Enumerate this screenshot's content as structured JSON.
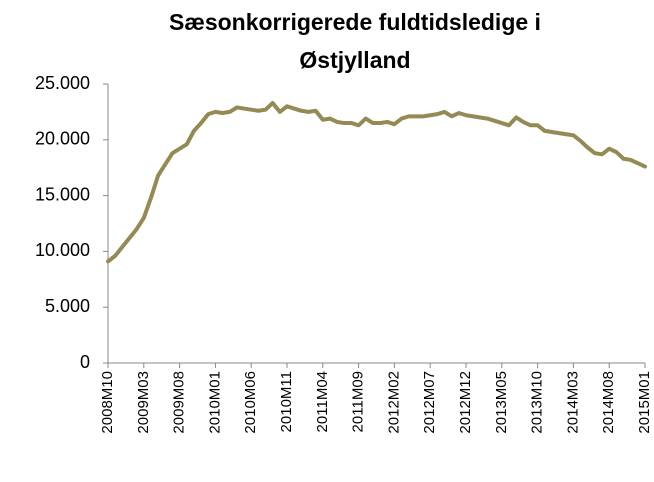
{
  "chart_data": {
    "type": "line",
    "title": [
      "Sæsonkorrigerede fuldtidsledige i",
      "Østjylland"
    ],
    "categories": [
      "2008M10",
      null,
      null,
      null,
      null,
      "2009M03",
      null,
      null,
      null,
      null,
      "2009M08",
      null,
      null,
      null,
      null,
      "2010M01",
      null,
      null,
      null,
      null,
      "2010M06",
      null,
      null,
      null,
      null,
      "2010M11",
      null,
      null,
      null,
      null,
      "2011M04",
      null,
      null,
      null,
      null,
      "2011M09",
      null,
      null,
      null,
      null,
      "2012M02",
      null,
      null,
      null,
      null,
      "2012M07",
      null,
      null,
      null,
      null,
      "2012M12",
      null,
      null,
      null,
      null,
      "2013M05",
      null,
      null,
      null,
      null,
      "2013M10",
      null,
      null,
      null,
      null,
      "2014M03",
      null,
      null,
      null,
      null,
      "2014M08",
      null,
      null,
      null,
      null,
      "2015M01"
    ],
    "series": [
      {
        "color": "#948a54",
        "values": [
          9100,
          9600,
          10400,
          11200,
          12000,
          13000,
          14800,
          16800,
          17800,
          18800,
          19200,
          19600,
          20800,
          21500,
          22300,
          22500,
          22400,
          22500,
          22900,
          22800,
          22700,
          22600,
          22700,
          23300,
          22500,
          23000,
          22800,
          22600,
          22500,
          22600,
          21800,
          21900,
          21600,
          21500,
          21500,
          21300,
          21900,
          21500,
          21500,
          21600,
          21400,
          21900,
          22100,
          22100,
          22100,
          22200,
          22300,
          22500,
          22100,
          22400,
          22200,
          22100,
          22000,
          21900,
          21700,
          21500,
          21300,
          22000,
          21600,
          21300,
          21300,
          20800,
          20700,
          20600,
          20500,
          20400,
          19900,
          19300,
          18800,
          18700,
          19200,
          18900,
          18300,
          18200,
          17900,
          17600
        ]
      }
    ],
    "ylim": [
      0,
      25000
    ],
    "yticks": [
      0,
      {
        "value": 5000,
        "label": "5.000"
      },
      {
        "value": 10000,
        "label": "10.000"
      },
      {
        "value": 15000,
        "label": "15.000"
      },
      {
        "value": 20000,
        "label": "20.000"
      },
      {
        "value": 25000,
        "label": "25.000"
      }
    ],
    "grid": false
  }
}
